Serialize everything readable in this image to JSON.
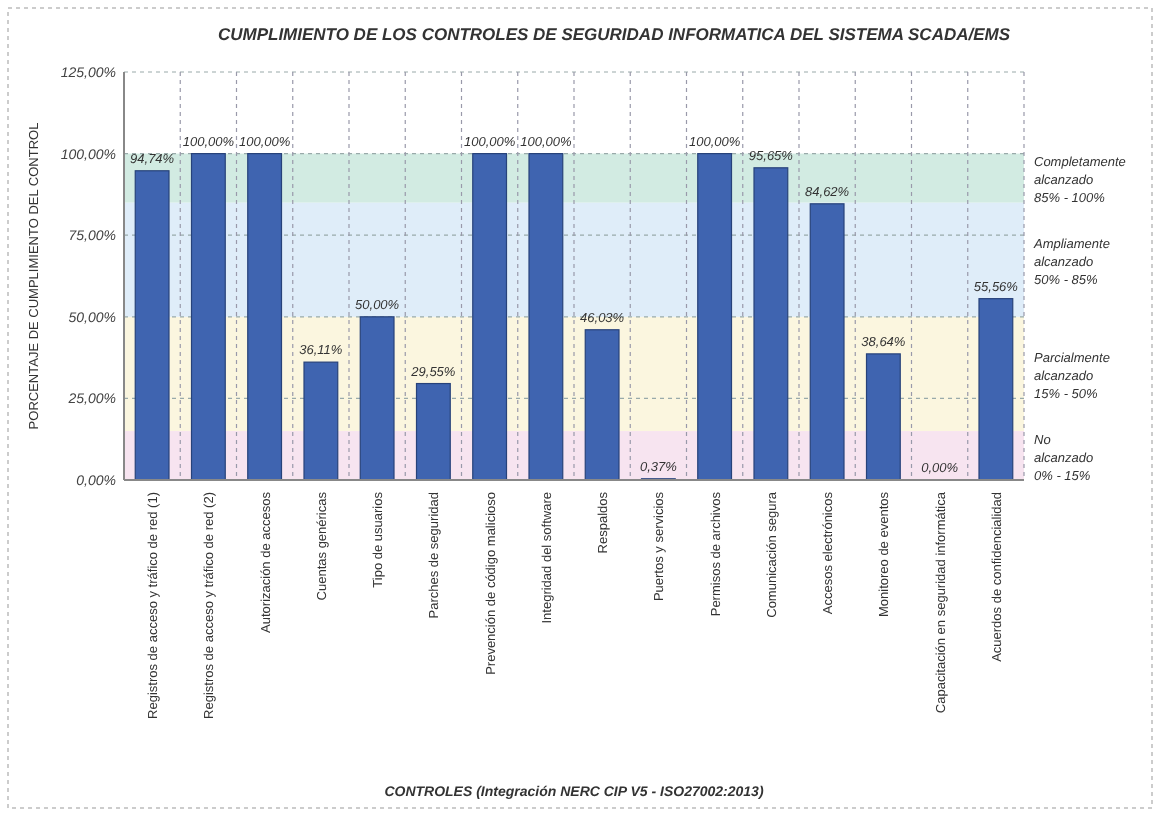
{
  "chart_data": {
    "type": "bar",
    "title": "CUMPLIMIENTO DE LOS CONTROLES DE SEGURIDAD INFORMATICA DEL SISTEMA SCADA/EMS",
    "xlabel": "CONTROLES (Integración NERC CIP V5 - ISO27002:2013)",
    "ylabel": "PORCENTAJE DE CUMPLIMIENTO DEL CONTROL",
    "categories": [
      "Registros de acceso y tráfico de red (1)",
      "Registros de acceso y tráfico de red (2)",
      "Autorización de accesos",
      "Cuentas genéricas",
      "Tipo de usuarios",
      "Parches de seguridad",
      "Prevención de código malicioso",
      "Integridad del software",
      "Respaldos",
      "Puertos y servicios",
      "Permisos de archivos",
      "Comunicación segura",
      "Accesos electrónicos",
      "Monitoreo de eventos",
      "Capacitación en seguridad informática",
      "Acuerdos de confidencialidad"
    ],
    "values": [
      94.74,
      100,
      100,
      36.11,
      50,
      29.55,
      100,
      100,
      46.03,
      0.37,
      100,
      95.65,
      84.62,
      38.64,
      0,
      55.56
    ],
    "value_labels": [
      "94,74%",
      "100,00%",
      "100,00%",
      "36,11%",
      "50,00%",
      "29,55%",
      "100,00%",
      "100,00%",
      "46,03%",
      "0,37%",
      "100,00%",
      "95,65%",
      "84,62%",
      "38,64%",
      "0,00%",
      "55,56%"
    ],
    "color": "#3f64b0",
    "ylim": [
      0,
      125
    ],
    "yticks": [
      {
        "value": 0,
        "label": "0,00%"
      },
      {
        "value": 25,
        "label": "25,00%"
      },
      {
        "value": 50,
        "label": "50,00%"
      },
      {
        "value": 75,
        "label": "75,00%"
      },
      {
        "value": 100,
        "label": "100,00%"
      },
      {
        "value": 125,
        "label": "125,00%"
      }
    ],
    "bands": [
      {
        "axis": "y",
        "from": 0,
        "to": 15,
        "label": "No alcanzado 0% - 15%",
        "color": "#f6e1ee"
      },
      {
        "axis": "y",
        "from": 15,
        "to": 50,
        "label": "Parcialmente alcanzado 15% - 50%",
        "color": "#fbf5dc"
      },
      {
        "axis": "y",
        "from": 50,
        "to": 85,
        "label": "Ampliamente alcanzado 50% - 85%",
        "color": "#dcebf8"
      },
      {
        "axis": "y",
        "from": 85,
        "to": 100,
        "label": "Completamente alcanzado 85% - 100%",
        "color": "#cde9df"
      }
    ],
    "grid": true
  }
}
